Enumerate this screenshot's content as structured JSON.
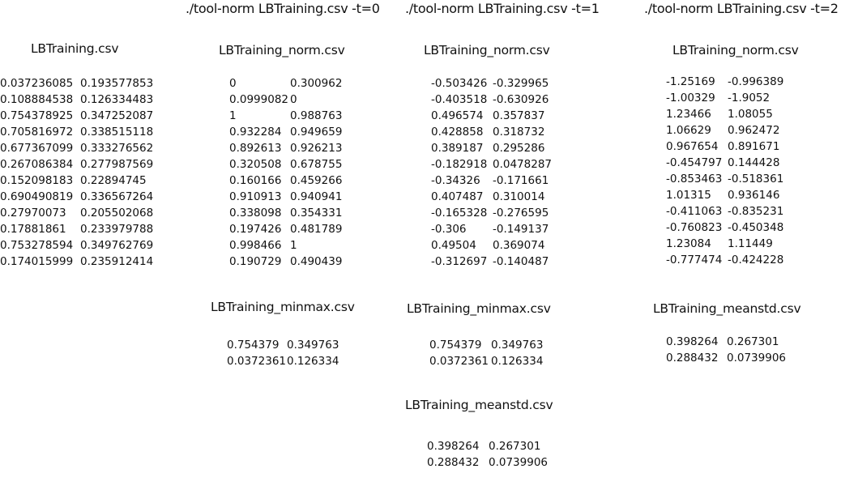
{
  "commands": [
    "./tool-norm LBTraining.csv -t=0",
    "./tool-norm LBTraining.csv -t=1",
    "./tool-norm LBTraining.csv -t=2"
  ],
  "tables": {
    "original": {
      "title": "LBTraining.csv",
      "rows": [
        [
          "0.037236085",
          "0.193577853"
        ],
        [
          "0.108884538",
          "0.126334483"
        ],
        [
          "0.754378925",
          "0.347252087"
        ],
        [
          "0.705816972",
          "0.338515118"
        ],
        [
          "0.677367099",
          "0.333276562"
        ],
        [
          "0.267086384",
          "0.277987569"
        ],
        [
          "0.152098183",
          "0.22894745"
        ],
        [
          "0.690490819",
          "0.336567264"
        ],
        [
          "0.27970073",
          "0.205502068"
        ],
        [
          "0.17881861",
          "0.233979788"
        ],
        [
          "0.753278594",
          "0.349762769"
        ],
        [
          "0.174015999",
          "0.235912414"
        ]
      ]
    },
    "norm_t0": {
      "title": "LBTraining_norm.csv",
      "rows": [
        [
          "0",
          "0.300962"
        ],
        [
          "0.0999082",
          "0"
        ],
        [
          "1",
          "0.988763"
        ],
        [
          "0.932284",
          "0.949659"
        ],
        [
          "0.892613",
          "0.926213"
        ],
        [
          "0.320508",
          "0.678755"
        ],
        [
          "0.160166",
          "0.459266"
        ],
        [
          "0.910913",
          "0.940941"
        ],
        [
          "0.338098",
          "0.354331"
        ],
        [
          "0.197426",
          "0.481789"
        ],
        [
          "0.998466",
          "1"
        ],
        [
          "0.190729",
          "0.490439"
        ]
      ]
    },
    "norm_t1": {
      "title": "LBTraining_norm.csv",
      "rows": [
        [
          "-0.503426",
          "-0.329965"
        ],
        [
          "-0.403518",
          "-0.630926"
        ],
        [
          "0.496574",
          "0.357837"
        ],
        [
          "0.428858",
          "0.318732"
        ],
        [
          "0.389187",
          "0.295286"
        ],
        [
          "-0.182918",
          "0.0478287"
        ],
        [
          "-0.34326",
          "-0.171661"
        ],
        [
          "0.407487",
          "0.310014"
        ],
        [
          "-0.165328",
          "-0.276595"
        ],
        [
          "-0.306",
          "-0.149137"
        ],
        [
          "0.49504",
          "0.369074"
        ],
        [
          "-0.312697",
          "-0.140487"
        ]
      ]
    },
    "norm_t2": {
      "title": "LBTraining_norm.csv",
      "rows": [
        [
          "-1.25169",
          "-0.996389"
        ],
        [
          "-1.00329",
          "-1.9052"
        ],
        [
          "1.23466",
          "1.08055"
        ],
        [
          "1.06629",
          "0.962472"
        ],
        [
          "0.967654",
          "0.891671"
        ],
        [
          "-0.454797",
          "0.144428"
        ],
        [
          "-0.853463",
          "-0.518361"
        ],
        [
          "1.01315",
          "0.936146"
        ],
        [
          "-0.411063",
          "-0.835231"
        ],
        [
          "-0.760823",
          "-0.450348"
        ],
        [
          "1.23084",
          "1.11449"
        ],
        [
          "-0.777474",
          "-0.424228"
        ]
      ]
    },
    "minmax_t0": {
      "title": "LBTraining_minmax.csv",
      "rows": [
        [
          "0.754379",
          "0.349763"
        ],
        [
          "0.0372361",
          "0.126334"
        ]
      ]
    },
    "minmax_t1": {
      "title": "LBTraining_minmax.csv",
      "rows": [
        [
          "0.754379",
          "0.349763"
        ],
        [
          "0.0372361",
          "0.126334"
        ]
      ]
    },
    "meanstd_t1": {
      "title": "LBTraining_meanstd.csv",
      "rows": [
        [
          "0.398264",
          "0.267301"
        ],
        [
          "0.288432",
          "0.0739906"
        ]
      ]
    },
    "meanstd_t2": {
      "title": "LBTraining_meanstd.csv",
      "rows": [
        [
          "0.398264",
          "0.267301"
        ],
        [
          "0.288432",
          "0.0739906"
        ]
      ]
    }
  }
}
